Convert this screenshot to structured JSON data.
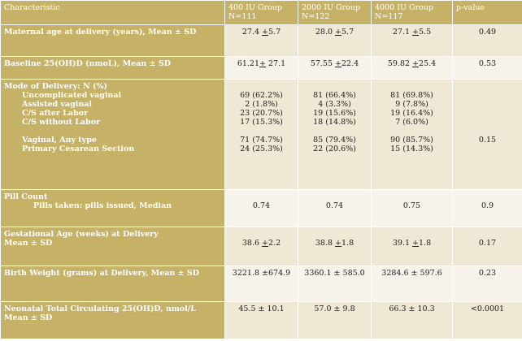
{
  "header": {
    "characteristic": "Characteristic",
    "g400": [
      "400 IU Group",
      "N=111"
    ],
    "g2000": [
      "2000 IU Group",
      "N=122"
    ],
    "g4000": [
      "4000 IU Group",
      "N=117"
    ],
    "pvalue": "p-value"
  },
  "rows": {
    "maternal_age": {
      "label": "Maternal age at delivery (years), Mean ± SD",
      "g400": [
        "27.4 ",
        "+",
        "5.7"
      ],
      "g2000": [
        "28.0 ",
        "+",
        "5.7"
      ],
      "g4000": [
        "27.1 ",
        "+",
        "5.5"
      ],
      "p": "0.49"
    },
    "baseline": {
      "label": "Baseline 25(OH)D (nmoL), Mean ± SD",
      "g400": [
        "61.21",
        "+",
        " 27.1"
      ],
      "g2000": [
        "57.55 ",
        "+",
        "22.4"
      ],
      "g4000": [
        "59.82 ",
        "+",
        "25.4"
      ],
      "p": "0.53"
    },
    "delivery": {
      "title": "Mode of Delivery:   N (%)",
      "items": [
        {
          "label": "Uncomplicated vaginal",
          "g400": "69 (62.2%)",
          "g2000": "81 (66.4%)",
          "g4000": "81 (69.8%)"
        },
        {
          "label": "Assisted vaginal",
          "g400": "2 (1.8%)",
          "g2000": "4 (3.3%)",
          "g4000": "9 (7.8%)"
        },
        {
          "label": "C/S after Labor",
          "g400": "23 (20.7%)",
          "g2000": "19 (15.6%)",
          "g4000": "19 (16.4%)"
        },
        {
          "label": "C/S without Labor",
          "g400": "17 (15.3%)",
          "g2000": "18 (14.8%)",
          "g4000": "7 (6.0%)"
        }
      ],
      "summary": [
        {
          "label": "Vaginal, Any type",
          "g400": "71 (74.7%)",
          "g2000": "85 (79.4%)",
          "g4000": "90 (85.7%)",
          "p": "0.15"
        },
        {
          "label": "Primary Cesarean Section",
          "g400": "24 (25.3%)",
          "g2000": "22 (20.6%)",
          "g4000": "15 (14.3%)"
        }
      ]
    },
    "pill": {
      "title": "Pill Count",
      "sub": "Pills taken: pills issued, Median",
      "g400": "0.74",
      "g2000": "0.74",
      "g4000": "0.75",
      "p": "0.9"
    },
    "gestational": {
      "label": [
        "Gestational Age (weeks) at Delivery",
        "Mean ± SD"
      ],
      "g400": [
        "38.6 ",
        "+",
        "2.2"
      ],
      "g2000": [
        "38.8 ",
        "+",
        "1.8"
      ],
      "g4000": [
        "39.1 ",
        "+",
        "1.8"
      ],
      "p": "0.17"
    },
    "birth_weight": {
      "label": "Birth Weight (grams) at Delivery, Mean ± SD",
      "g400": "3221.8 ±674.9",
      "g2000": "3360.1 ± 585.0",
      "g4000": "3284.6 ± 597.6",
      "p": "0.23"
    },
    "neonatal": {
      "label": [
        "Neonatal Total Circulating 25(OH)D, nmol/L",
        "Mean ± SD"
      ],
      "g400": "45.5 ± 10.1",
      "g2000": "57.0 ± 9.8",
      "g4000": "66.3 ± 10.3",
      "p": "<0.0001"
    }
  },
  "colors": {
    "label_column": "#c6b266",
    "cell_odd": "#efe8d4",
    "cell_even": "#f7f3ea",
    "grid": "#ffffff"
  }
}
